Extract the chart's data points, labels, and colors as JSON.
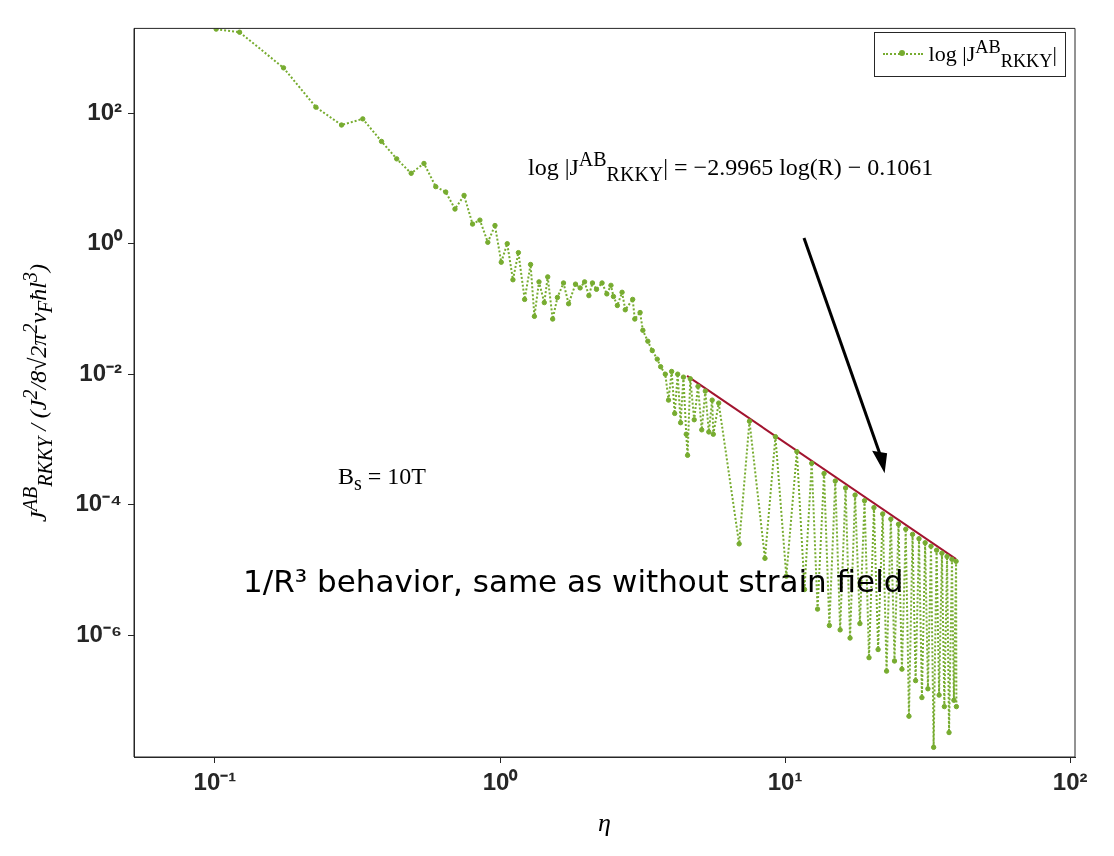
{
  "chart_data": {
    "type": "line",
    "xlabel": "η",
    "ylabel": "J$^{AB}$$_{RKKY}$ / (J$^{2}$/8√2π$^{2}$v$_{F}$ħl$^{3}$)",
    "log": "xy",
    "xlim": [
      0.052,
      104
    ],
    "ylim": [
      1.35e-08,
      2000
    ],
    "xticks": [
      {
        "value": 0.1,
        "label": "10⁻¹"
      },
      {
        "value": 1,
        "label": "10⁰"
      },
      {
        "value": 10,
        "label": "10¹"
      },
      {
        "value": 100,
        "label": "10²"
      }
    ],
    "yticks": [
      {
        "value": 1e-06,
        "label": "10⁻⁶"
      },
      {
        "value": 0.0001,
        "label": "10⁻⁴"
      },
      {
        "value": 0.01,
        "label": "10⁻²"
      },
      {
        "value": 1,
        "label": "10⁰"
      },
      {
        "value": 100,
        "label": "10²"
      }
    ],
    "grid": false,
    "legend": "top right",
    "annotations": [
      "log |J$^{AB}$$_{RKKY}$| = −2.9965 log(R) − 0.1061",
      "B$_{s}$ = 10T",
      "1/R³ behavior, same as without strain field"
    ],
    "series": [
      {
        "name": "log |J$^{AB}$$_{RKKY}$|",
        "color": "#77ac30",
        "line_style": "dotted",
        "marker": "circle",
        "x": [
          0.101,
          0.122,
          0.174,
          0.226,
          0.278,
          0.33,
          0.384,
          0.434,
          0.488,
          0.541,
          0.595,
          0.645,
          0.695,
          0.748,
          0.801,
          0.85,
          0.906,
          0.96,
          1.01,
          1.06,
          1.11,
          1.16,
          1.22,
          1.28,
          1.32,
          1.37,
          1.43,
          1.47,
          1.53,
          1.59,
          1.67,
          1.74,
          1.84,
          1.91,
          1.98,
          2.05,
          2.11,
          2.18,
          2.28,
          2.37,
          2.45,
          2.5,
          2.58,
          2.68,
          2.75,
          2.92,
          2.97,
          3.1,
          3.17,
          3.3,
          3.42,
          3.56,
          3.66,
          3.8,
          3.9,
          4.0,
          4.1,
          4.2,
          4.3,
          4.4,
          4.5,
          4.55,
          4.65,
          4.8,
          4.95,
          5.1,
          5.25,
          5.4,
          5.55,
          5.6,
          5.85,
          6.9,
          7.5,
          8.5,
          9.25,
          10.1,
          11.0,
          11.7,
          12.4,
          13.0,
          13.7,
          14.3,
          15.0,
          15.6,
          16.3,
          16.9,
          17.6,
          18.3,
          19.0,
          19.7,
          20.5,
          21.2,
          22,
          22.7,
          23.5,
          24.2,
          25,
          25.7,
          26.5,
          27.2,
          28,
          28.7,
          29.5,
          30.2,
          31,
          31.7,
          32.5,
          33.2,
          34,
          34.7,
          35.5,
          36.2,
          37,
          37.6,
          38.5,
          39.1,
          39.8,
          39.9
        ],
        "values": [
          1950,
          1750,
          497,
          124,
          66,
          82,
          37,
          20,
          12,
          17,
          7.5,
          6.2,
          3.4,
          5.5,
          2.0,
          2.3,
          1.05,
          1.9,
          0.52,
          1.0,
          0.28,
          0.73,
          0.14,
          0.48,
          0.077,
          0.26,
          0.125,
          0.31,
          0.07,
          0.15,
          0.25,
          0.12,
          0.24,
          0.21,
          0.26,
          0.16,
          0.25,
          0.2,
          0.25,
          0.17,
          0.23,
          0.155,
          0.113,
          0.18,
          0.097,
          0.14,
          0.07,
          0.088,
          0.047,
          0.032,
          0.023,
          0.017,
          0.013,
          0.01,
          0.004,
          0.011,
          0.0025,
          0.01,
          0.0018,
          0.009,
          0.0012,
          0.00057,
          0.0085,
          0.002,
          0.0065,
          0.0014,
          0.0055,
          0.0013,
          0.004,
          0.0012,
          0.0036,
          2.5e-05,
          0.0019,
          1.5e-05,
          0.0011,
          8e-06,
          0.00065,
          5e-06,
          0.00043,
          2.5e-06,
          0.0003,
          1.4e-06,
          0.00023,
          1.2e-06,
          0.00018,
          9e-07,
          0.00014,
          1.5e-06,
          0.000115,
          4.5e-07,
          9e-05,
          6e-07,
          7.2e-05,
          2.8e-07,
          6e-05,
          4e-07,
          5e-05,
          3e-07,
          4.2e-05,
          5.7e-08,
          3.5e-05,
          2e-07,
          3e-05,
          1.1e-07,
          2.6e-05,
          1.5e-07,
          2.3e-05,
          1.9e-08,
          2e-05,
          1.2e-07,
          1.8e-05,
          8e-08,
          1.6e-05,
          3.2e-08,
          1.45e-05,
          1e-07,
          1.35e-05,
          8e-08
        ]
      },
      {
        "type": "line",
        "color": "#a2142f",
        "line_style": "solid",
        "marker": "none",
        "x": [
          4.53,
          39.8
        ],
        "values": [
          0.0094,
          1.46e-05
        ]
      }
    ]
  }
}
